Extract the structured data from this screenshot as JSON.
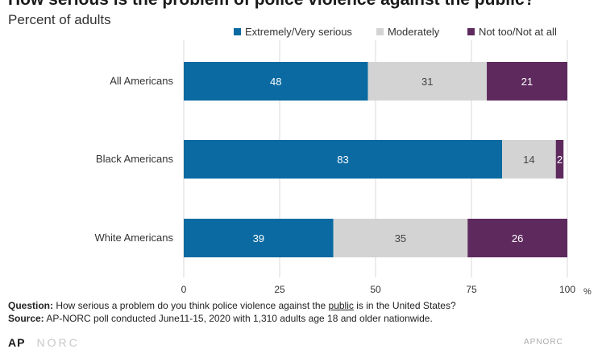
{
  "title": "How serious is the problem of police violence against the public?",
  "subtitle": "Percent of adults",
  "colors": {
    "extremely": "#0a6aa1",
    "moderately": "#d3d3d3",
    "not_too": "#5e2a5e"
  },
  "footer": {
    "question_label": "Question:",
    "question_pre": " How serious a problem do you think police violence against the ",
    "question_emph": "public",
    "question_post": " is in the United States?",
    "source_label": "Source:",
    "source_text": " AP-NORC poll conducted June11-15, 2020 with 1,310 adults age 18 and older nationwide."
  },
  "logos": {
    "left_ap": "AP",
    "left_norc": "NORC",
    "right": "APNORC"
  },
  "chart_data": {
    "type": "bar",
    "orientation": "horizontal",
    "stacked": true,
    "categories": [
      "All Americans",
      "Black Americans",
      "White Americans"
    ],
    "series": [
      {
        "name": "Extremely/Very serious",
        "values": [
          48,
          83,
          39
        ],
        "color": "#0a6aa1",
        "label_color": "#ffffff"
      },
      {
        "name": "Moderately",
        "values": [
          31,
          14,
          35
        ],
        "color": "#d3d3d3",
        "label_color": "#444444"
      },
      {
        "name": "Not too/Not at all",
        "values": [
          21,
          2,
          26
        ],
        "color": "#5e2a5e",
        "label_color": "#ffffff"
      }
    ],
    "xlim": [
      0,
      100
    ],
    "xticks": [
      0,
      25,
      50,
      75,
      100
    ],
    "x_unit": "%",
    "grid": "vertical",
    "legend": "top-right"
  }
}
